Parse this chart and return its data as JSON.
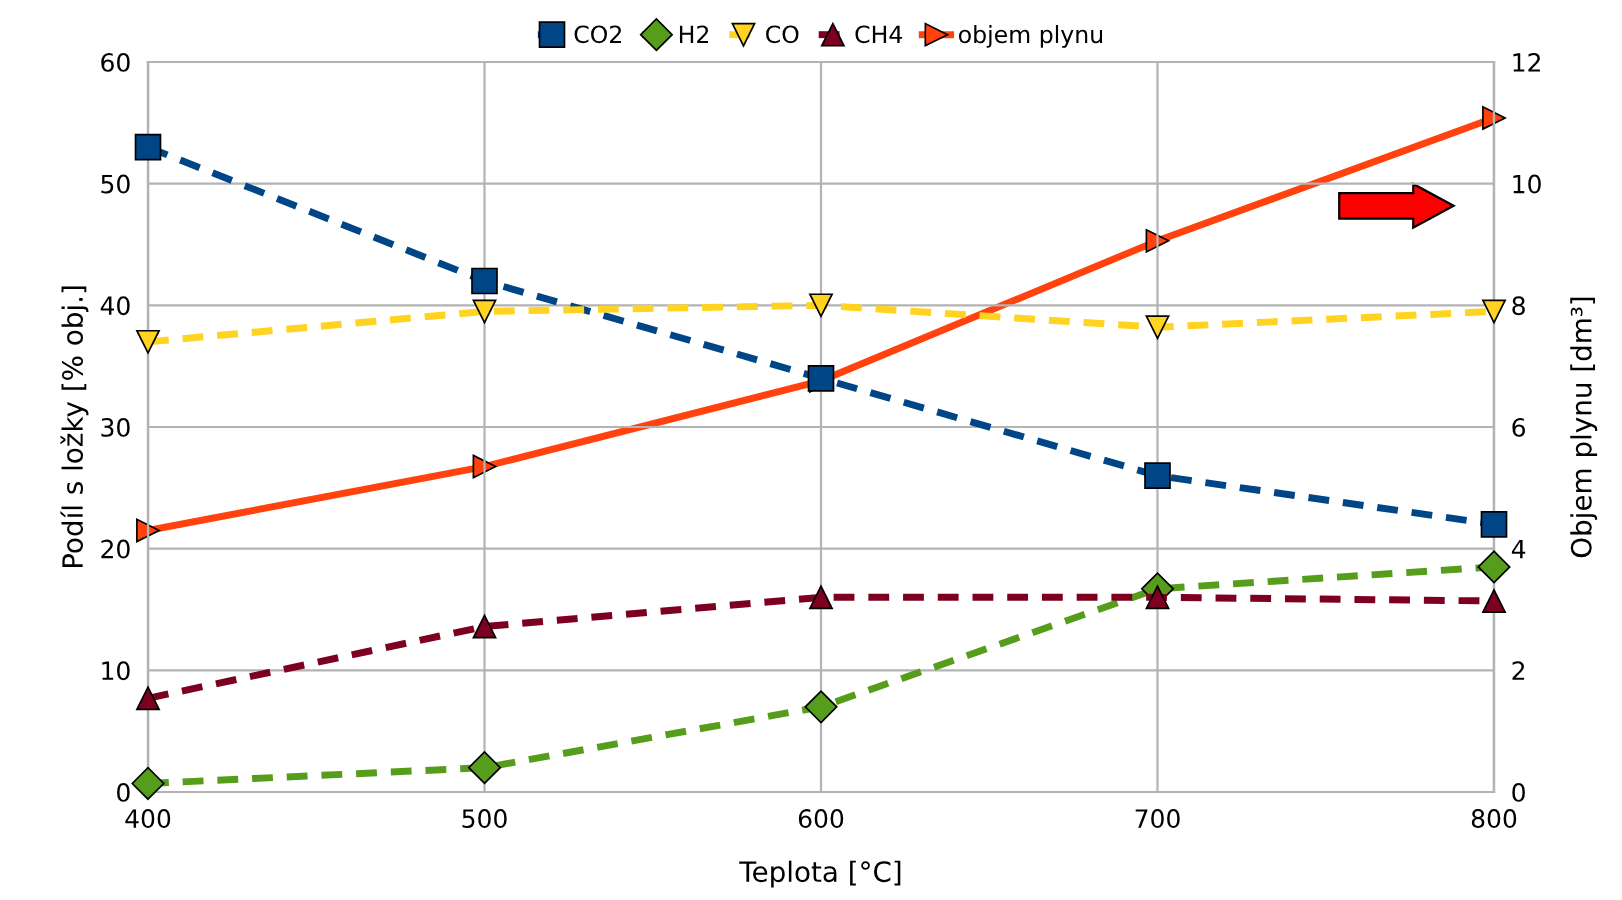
{
  "chart_data": {
    "type": "line",
    "xlabel": "Teplota [°C]",
    "ylabel": "Podíl s ložky [% obj.]",
    "y2label": "Objem plynu [dm³]",
    "x": [
      400,
      500,
      600,
      700,
      800
    ],
    "series": [
      {
        "name": "CO2",
        "color": "#004586",
        "marker": "square",
        "line_style": "dashed",
        "values": [
          53,
          42,
          34,
          26,
          22
        ]
      },
      {
        "name": "H2",
        "color": "#579d1c",
        "marker": "diamond",
        "line_style": "dashed",
        "values": [
          0.7,
          2,
          7,
          16.7,
          18.5
        ]
      },
      {
        "name": "CO",
        "color": "#ffd320",
        "marker": "triangle_down",
        "line_style": "dashed",
        "values": [
          37,
          39.5,
          40,
          38.2,
          39.5
        ]
      },
      {
        "name": "CH4",
        "color": "#7e0021",
        "marker": "triangle",
        "line_style": "dashed",
        "values": [
          7.7,
          13.6,
          16,
          16,
          15.7
        ]
      },
      {
        "name": "objem plynu",
        "color": "#ff420e",
        "marker": "triangle_right",
        "line_style": "solid",
        "axis": "y2",
        "values": [
          4.3,
          5.35,
          6.76,
          9.06,
          11.08
        ]
      }
    ],
    "xlim": [
      400,
      800
    ],
    "xticks": [
      400,
      500,
      600,
      700,
      800
    ],
    "ylim": [
      0,
      60
    ],
    "yticks": [
      0,
      10,
      20,
      30,
      40,
      50,
      60
    ],
    "y2lim": [
      0,
      12
    ],
    "y2ticks": [
      0,
      2,
      4,
      6,
      8,
      10,
      12
    ],
    "grid": true,
    "legend": "top"
  }
}
